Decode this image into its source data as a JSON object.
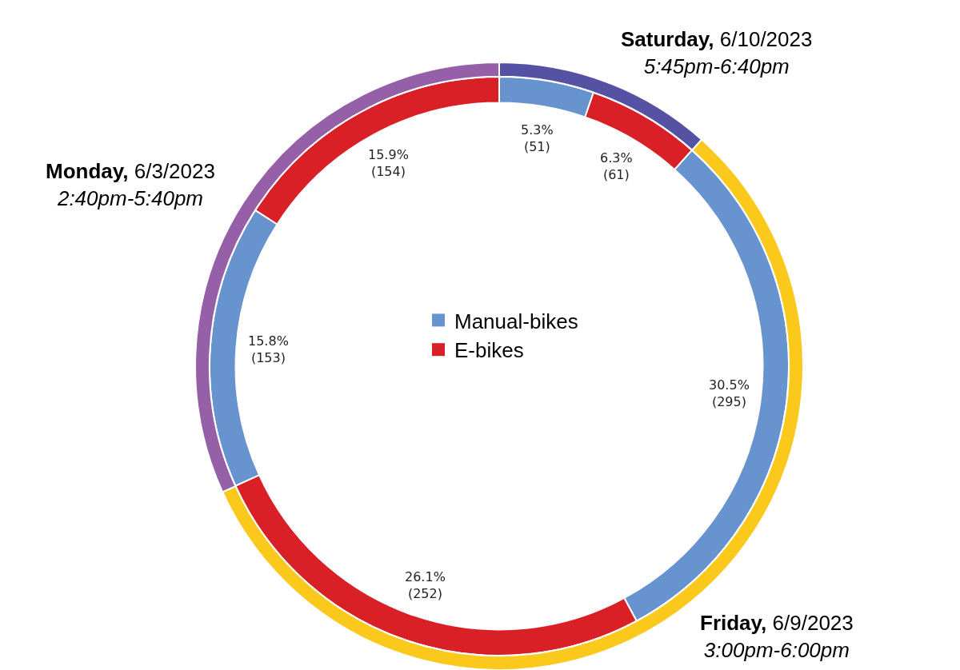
{
  "chart_data": [
    {
      "type": "donut",
      "categories": [
        "Manual-bikes",
        "E-bikes",
        null,
        null,
        null,
        null
      ],
      "values": [
        51,
        61,
        295,
        252,
        153,
        154
      ],
      "colors": [
        "#6794cf",
        "#d92027",
        "#6794cf",
        "#d92027",
        "#6794cf",
        "#d92027"
      ],
      "value_labels": [
        "5.3%\n(51)",
        "6.3%\n(61)",
        "30.5%\n(295)",
        "26.1%\n(252)",
        "15.8%\n(153)",
        "15.9%\n(154)"
      ],
      "legend": "center"
    },
    {
      "type": "donut",
      "categories": [
        "Saturday, 6/10/2023\n5:45pm-6:40pm",
        "Friday, 6/9/2023\n3:00pm-6:00pm",
        "Monday, 6/3/2023\n2:40pm-5:40pm"
      ],
      "values": [
        11.6,
        56.6,
        31.8
      ],
      "colors": [
        "#5552a3",
        "#fbc91b",
        "#9660a8"
      ]
    }
  ]
}
